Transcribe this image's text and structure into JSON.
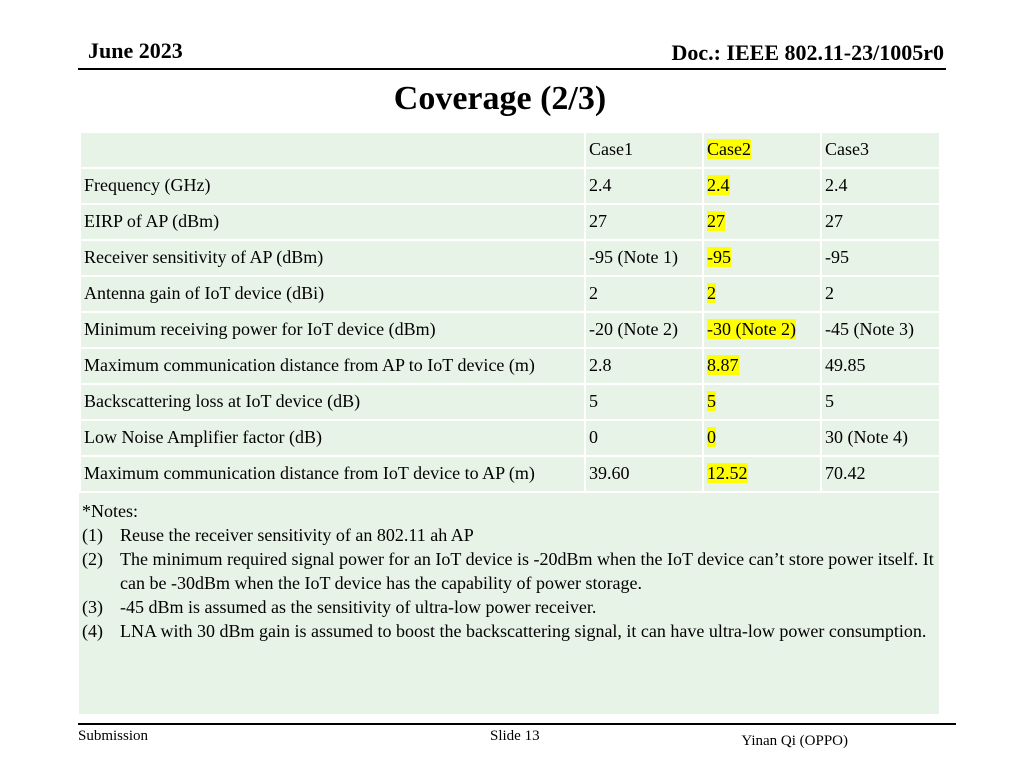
{
  "header": {
    "date": "June 2023",
    "doc": "Doc.: IEEE 802.11-23/1005r0"
  },
  "title": "Coverage (2/3)",
  "table": {
    "columns": [
      "",
      "Case1",
      "Case2",
      "Case3"
    ],
    "rows": [
      [
        "Frequency (GHz)",
        "2.4",
        "2.4",
        "2.4"
      ],
      [
        "EIRP of AP (dBm)",
        "27",
        "27",
        "27"
      ],
      [
        "Receiver sensitivity of AP (dBm)",
        "-95 (Note 1)",
        "-95",
        "-95"
      ],
      [
        "Antenna gain of IoT device (dBi)",
        "2",
        "2",
        "2"
      ],
      [
        "Minimum receiving power for IoT device (dBm)",
        "-20 (Note 2)",
        "-30 (Note 2)",
        "-45 (Note 3)"
      ],
      [
        "Maximum communication distance from AP to IoT device (m)",
        "2.8",
        "8.87",
        "49.85"
      ],
      [
        "Backscattering loss at IoT device (dB)",
        "5",
        "5",
        "5"
      ],
      [
        "Low Noise Amplifier factor (dB)",
        "0",
        "0",
        "30 (Note 4)"
      ],
      [
        "Maximum communication distance from IoT device to AP (m)",
        "39.60",
        "12.52",
        "70.42"
      ]
    ],
    "highlight_color": "#ffff00",
    "cell_color": "#e8f3e8"
  },
  "notes": {
    "heading": "*Notes:",
    "items": [
      {
        "num": "(1)",
        "text": "Reuse the receiver sensitivity of an 802.11 ah AP"
      },
      {
        "num": "(2)",
        "text": "The minimum required signal power for an IoT device is -20dBm when the IoT device can’t store power itself. It can be -30dBm when the IoT device has the capability of power storage."
      },
      {
        "num": "(3)",
        "text": "-45 dBm is assumed as the sensitivity of ultra-low power receiver."
      },
      {
        "num": "(4)",
        "text": "LNA with 30 dBm gain is assumed to boost the backscattering signal, it can have ultra-low power consumption."
      }
    ]
  },
  "footer": {
    "left": "Submission",
    "slide": "Slide 13",
    "author": "Yinan Qi (OPPO)"
  }
}
